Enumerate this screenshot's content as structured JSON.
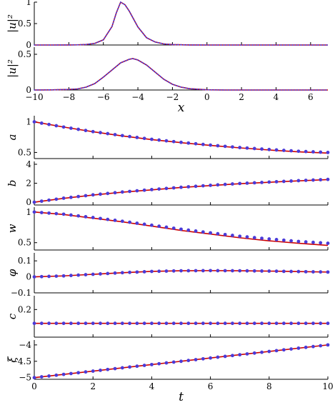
{
  "chart_data": [
    {
      "id": "profile-initial",
      "type": "line",
      "ylabel": "|u|²",
      "xlim": [
        -10,
        7
      ],
      "ylim": [
        0,
        1
      ],
      "yticks": [
        0,
        0.5,
        1
      ],
      "ytick_labels": [
        "0",
        "0.5",
        "1"
      ],
      "xticks": [
        -10,
        -8,
        -6,
        -4,
        -2,
        0,
        2,
        4,
        6
      ],
      "series": [
        {
          "kind": "numeric",
          "color": "#cc0000",
          "style": "solid",
          "x": [
            -10,
            -9,
            -8,
            -7.5,
            -7,
            -6.5,
            -6,
            -5.5,
            -5.25,
            -5,
            -4.75,
            -4.5,
            -4,
            -3.5,
            -3,
            -2.5,
            -2,
            -1,
            0,
            1,
            2,
            3,
            4,
            5,
            6,
            7
          ],
          "y": [
            0,
            0,
            0.001,
            0.004,
            0.012,
            0.037,
            0.12,
            0.43,
            0.75,
            1.0,
            0.94,
            0.79,
            0.42,
            0.17,
            0.07,
            0.025,
            0.009,
            0.001,
            0,
            0,
            0,
            0,
            0,
            0,
            0,
            0
          ]
        },
        {
          "kind": "variational",
          "color": "#4a3ad8",
          "style": "dotted",
          "x": [
            -10,
            -9,
            -8,
            -7.5,
            -7,
            -6.5,
            -6,
            -5.5,
            -5.25,
            -5,
            -4.75,
            -4.5,
            -4,
            -3.5,
            -3,
            -2.5,
            -2,
            -1,
            0,
            1,
            2,
            3,
            4,
            5,
            6,
            7
          ],
          "y": [
            0,
            0,
            0.001,
            0.004,
            0.012,
            0.037,
            0.12,
            0.43,
            0.75,
            1.0,
            0.94,
            0.79,
            0.42,
            0.17,
            0.07,
            0.025,
            0.009,
            0.001,
            0,
            0,
            0,
            0,
            0,
            0,
            0,
            0
          ]
        }
      ]
    },
    {
      "id": "profile-final",
      "type": "line",
      "ylabel": "|u|²",
      "xlabel": "x",
      "xlim": [
        -10,
        7
      ],
      "ylim": [
        0,
        0.6
      ],
      "yticks": [
        0,
        0.5
      ],
      "ytick_labels": [
        "0",
        "0.5"
      ],
      "xticks": [
        -10,
        -8,
        -6,
        -4,
        -2,
        0,
        2,
        4,
        6
      ],
      "xtick_labels": [
        "−10",
        "−8",
        "−6",
        "−4",
        "−2",
        "0",
        "2",
        "4",
        "6"
      ],
      "series": [
        {
          "kind": "numeric",
          "color": "#cc0000",
          "style": "solid",
          "x": [
            -10,
            -9,
            -8,
            -7.5,
            -7,
            -6.5,
            -6,
            -5.5,
            -5,
            -4.5,
            -4.3,
            -4,
            -3.5,
            -3,
            -2.5,
            -2,
            -1.5,
            -1,
            0,
            1,
            2,
            3,
            4,
            5,
            6,
            7
          ],
          "y": [
            0,
            0.002,
            0.008,
            0.015,
            0.04,
            0.09,
            0.18,
            0.28,
            0.38,
            0.43,
            0.44,
            0.42,
            0.35,
            0.25,
            0.15,
            0.08,
            0.04,
            0.018,
            0.003,
            0,
            0,
            0,
            0,
            0,
            0,
            0
          ]
        },
        {
          "kind": "variational",
          "color": "#4a3ad8",
          "style": "dotted",
          "x": [
            -10,
            -9,
            -8,
            -7.5,
            -7,
            -6.5,
            -6,
            -5.5,
            -5,
            -4.5,
            -4.3,
            -4,
            -3.5,
            -3,
            -2.5,
            -2,
            -1.5,
            -1,
            0,
            1,
            2,
            3,
            4,
            5,
            6,
            7
          ],
          "y": [
            0,
            0.002,
            0.008,
            0.015,
            0.04,
            0.09,
            0.18,
            0.28,
            0.38,
            0.43,
            0.44,
            0.42,
            0.35,
            0.25,
            0.15,
            0.08,
            0.04,
            0.018,
            0.003,
            0,
            0,
            0,
            0,
            0,
            0,
            0
          ]
        }
      ]
    },
    {
      "id": "param-a",
      "type": "line",
      "ylabel": "a",
      "xlim": [
        0,
        10
      ],
      "ylim": [
        0.4,
        1.1
      ],
      "yticks": [
        0.5,
        1
      ],
      "ytick_labels": [
        "0.5",
        "1"
      ],
      "xticks": [
        0,
        2,
        4,
        6,
        8,
        10
      ],
      "series": [
        {
          "kind": "numeric",
          "color": "#cc0000",
          "style": "solid",
          "x": [
            0,
            1,
            2,
            3,
            4,
            5,
            6,
            7,
            8,
            9,
            10
          ],
          "y": [
            1.0,
            0.915,
            0.838,
            0.77,
            0.71,
            0.66,
            0.615,
            0.575,
            0.54,
            0.51,
            0.49
          ]
        },
        {
          "kind": "variational",
          "color": "#4a3ad8",
          "style": "dots",
          "x": [
            0,
            1,
            2,
            3,
            4,
            5,
            6,
            7,
            8,
            9,
            10
          ],
          "y": [
            1.0,
            0.915,
            0.84,
            0.775,
            0.715,
            0.665,
            0.62,
            0.58,
            0.548,
            0.52,
            0.5
          ]
        }
      ]
    },
    {
      "id": "param-b",
      "type": "line",
      "ylabel": "b",
      "xlim": [
        0,
        10
      ],
      "ylim": [
        -0.3,
        4.3
      ],
      "yticks": [
        0,
        2,
        4
      ],
      "ytick_labels": [
        "0",
        "2",
        "4"
      ],
      "xticks": [
        0,
        2,
        4,
        6,
        8,
        10
      ],
      "series": [
        {
          "kind": "numeric",
          "color": "#cc0000",
          "style": "solid",
          "x": [
            0,
            1,
            2,
            3,
            4,
            5,
            6,
            7,
            8,
            9,
            10
          ],
          "y": [
            0,
            0.4,
            0.75,
            1.05,
            1.3,
            1.55,
            1.75,
            1.95,
            2.1,
            2.25,
            2.38
          ]
        },
        {
          "kind": "variational",
          "color": "#4a3ad8",
          "style": "dots",
          "x": [
            0,
            1,
            2,
            3,
            4,
            5,
            6,
            7,
            8,
            9,
            10
          ],
          "y": [
            0,
            0.42,
            0.77,
            1.07,
            1.33,
            1.57,
            1.78,
            1.97,
            2.12,
            2.27,
            2.4
          ]
        }
      ]
    },
    {
      "id": "param-w",
      "type": "line",
      "ylabel": "w",
      "xlim": [
        0,
        10
      ],
      "ylim": [
        0.38,
        1.08
      ],
      "yticks": [
        0.5,
        1
      ],
      "ytick_labels": [
        "0.5",
        "1"
      ],
      "xticks": [
        0,
        2,
        4,
        6,
        8,
        10
      ],
      "series": [
        {
          "kind": "numeric",
          "color": "#cc0000",
          "style": "solid",
          "x": [
            0,
            1,
            2,
            3,
            4,
            5,
            6,
            7,
            8,
            9,
            10
          ],
          "y": [
            1.0,
            0.96,
            0.9,
            0.84,
            0.77,
            0.7,
            0.64,
            0.58,
            0.53,
            0.49,
            0.455
          ]
        },
        {
          "kind": "variational",
          "color": "#4a3ad8",
          "style": "dots",
          "x": [
            0,
            1,
            2,
            3,
            4,
            5,
            6,
            7,
            8,
            9,
            10
          ],
          "y": [
            1.0,
            0.965,
            0.91,
            0.85,
            0.785,
            0.72,
            0.66,
            0.605,
            0.56,
            0.52,
            0.49
          ]
        }
      ]
    },
    {
      "id": "param-phi",
      "type": "line",
      "ylabel": "φ",
      "xlim": [
        0,
        10
      ],
      "ylim": [
        -0.1,
        0.15
      ],
      "yticks": [
        -0.1,
        0,
        0.1
      ],
      "ytick_labels": [
        "−0.1",
        "0",
        "0.1"
      ],
      "xticks": [
        0,
        2,
        4,
        6,
        8,
        10
      ],
      "series": [
        {
          "kind": "numeric",
          "color": "#cc0000",
          "style": "solid",
          "x": [
            0,
            1,
            2,
            3,
            4,
            5,
            6,
            7,
            8,
            9,
            10
          ],
          "y": [
            0,
            0.006,
            0.016,
            0.026,
            0.034,
            0.038,
            0.039,
            0.038,
            0.036,
            0.033,
            0.03
          ]
        },
        {
          "kind": "variational",
          "color": "#4a3ad8",
          "style": "dots",
          "x": [
            0,
            1,
            2,
            3,
            4,
            5,
            6,
            7,
            8,
            9,
            10
          ],
          "y": [
            0,
            0.006,
            0.016,
            0.026,
            0.034,
            0.038,
            0.039,
            0.038,
            0.036,
            0.033,
            0.03
          ]
        }
      ]
    },
    {
      "id": "param-c",
      "type": "line",
      "ylabel": "c",
      "xlim": [
        0,
        10
      ],
      "ylim": [
        0,
        0.3
      ],
      "yticks": [
        0.2
      ],
      "ytick_labels": [
        "0.2"
      ],
      "xticks": [
        0,
        2,
        4,
        6,
        8,
        10
      ],
      "series": [
        {
          "kind": "numeric",
          "color": "#cc0000",
          "style": "solid",
          "x": [
            0,
            10
          ],
          "y": [
            0.1,
            0.1
          ]
        },
        {
          "kind": "variational",
          "color": "#4a3ad8",
          "style": "dots",
          "x": [
            0,
            1,
            2,
            3,
            4,
            5,
            6,
            7,
            8,
            9,
            10
          ],
          "y": [
            0.1,
            0.1,
            0.1,
            0.1,
            0.1,
            0.1,
            0.1,
            0.1,
            0.1,
            0.1,
            0.1
          ]
        }
      ]
    },
    {
      "id": "param-xi",
      "type": "line",
      "ylabel": "ξ",
      "xlabel": "t",
      "xlim": [
        0,
        10
      ],
      "ylim": [
        -5.05,
        -3.85
      ],
      "yticks": [
        -5,
        -4.5,
        -4
      ],
      "ytick_labels": [
        "−5",
        "−4.5",
        "−4"
      ],
      "xticks": [
        0,
        2,
        4,
        6,
        8,
        10
      ],
      "xtick_labels": [
        "0",
        "2",
        "4",
        "6",
        "8",
        "10"
      ],
      "series": [
        {
          "kind": "numeric",
          "color": "#cc0000",
          "style": "solid",
          "x": [
            0,
            10
          ],
          "y": [
            -5.0,
            -4.0
          ]
        },
        {
          "kind": "variational",
          "color": "#4a3ad8",
          "style": "dots",
          "x": [
            0,
            1,
            2,
            3,
            4,
            5,
            6,
            7,
            8,
            9,
            10
          ],
          "y": [
            -5.0,
            -4.9,
            -4.8,
            -4.7,
            -4.6,
            -4.5,
            -4.4,
            -4.3,
            -4.2,
            -4.1,
            -4.0
          ]
        }
      ]
    }
  ]
}
